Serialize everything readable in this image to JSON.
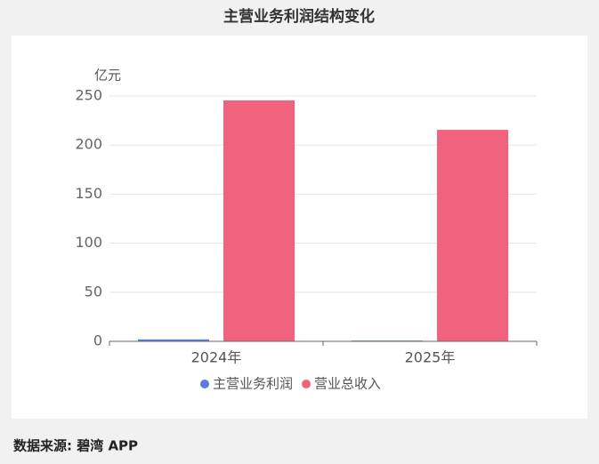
{
  "chart_data": {
    "type": "bar",
    "title": "主营业务利润结构变化",
    "y_label": "亿元",
    "categories": [
      "2024年",
      "2025年"
    ],
    "series": [
      {
        "name": "主营业务利润",
        "color": "#5b7bd5",
        "values": [
          2,
          0.8
        ]
      },
      {
        "name": "营业总收入",
        "color": "#f0627e",
        "values": [
          245.5,
          215.5
        ]
      }
    ],
    "ylim": [
      0,
      250
    ],
    "yticks": [
      0,
      50,
      100,
      150,
      200,
      250
    ],
    "grid": true,
    "legend": "bottom",
    "source": "数据来源: 碧湾 APP"
  }
}
